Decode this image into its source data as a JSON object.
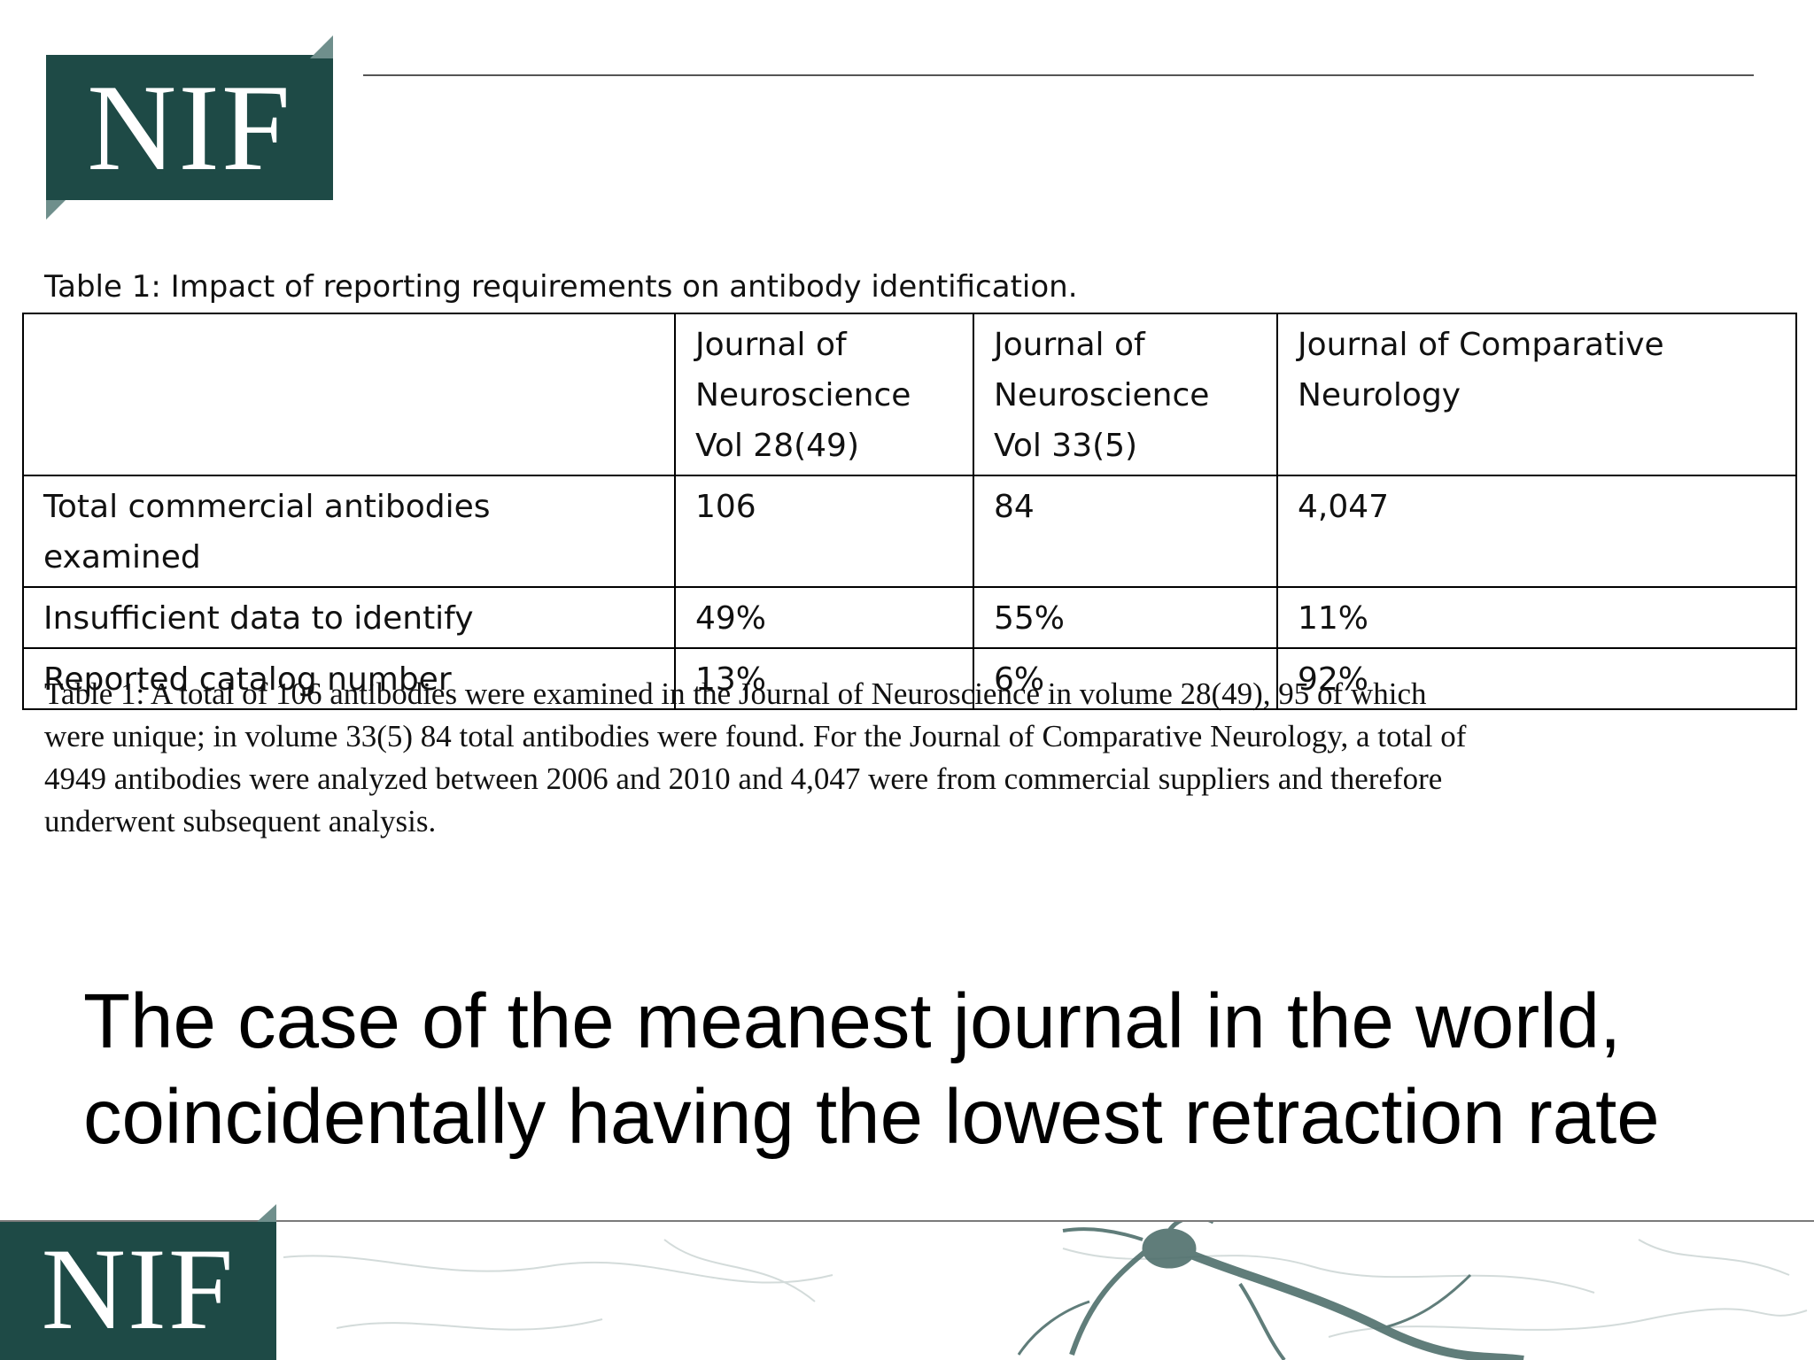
{
  "logo": {
    "text": "NIF"
  },
  "table": {
    "title": "Table 1: Impact of reporting requirements on antibody identification.",
    "columns": [
      {
        "lines": [
          "",
          "",
          ""
        ]
      },
      {
        "lines": [
          "Journal of",
          "Neuroscience",
          "Vol 28(49)"
        ]
      },
      {
        "lines": [
          "Journal of",
          "Neuroscience",
          "Vol 33(5)"
        ]
      },
      {
        "lines": [
          "Journal of Comparative",
          "Neurology",
          ""
        ]
      }
    ],
    "rows": [
      {
        "label_lines": [
          "Total commercial antibodies",
          "examined"
        ],
        "values": [
          "106",
          "84",
          "4,047"
        ]
      },
      {
        "label_lines": [
          "Insufficient data to identify"
        ],
        "values": [
          "49%",
          "55%",
          "11%"
        ]
      },
      {
        "label_lines": [
          "Reported catalog number"
        ],
        "values": [
          "13%",
          "6%",
          "92%"
        ]
      }
    ],
    "note_lines": [
      "Table 1: A total of 106 antibodies were examined in the Journal of Neuroscience in volume 28(49), 95 of which",
      "were unique; in volume 33(5) 84 total antibodies were found. For the Journal of Comparative Neurology, a total of",
      "4949 antibodies were analyzed between 2006 and 2010 and 4,047 were from commercial suppliers and therefore",
      "underwent subsequent analysis."
    ]
  },
  "body_text": {
    "lines": [
      "The case of the meanest journal in the world,",
      "coincidentally having the lowest retraction rate"
    ]
  },
  "colors": {
    "logo_bg": "#1e4a46",
    "logo_fold": "#6f8f8c",
    "logo_text": "#ffffff",
    "neuron": "#4f6f6c"
  }
}
